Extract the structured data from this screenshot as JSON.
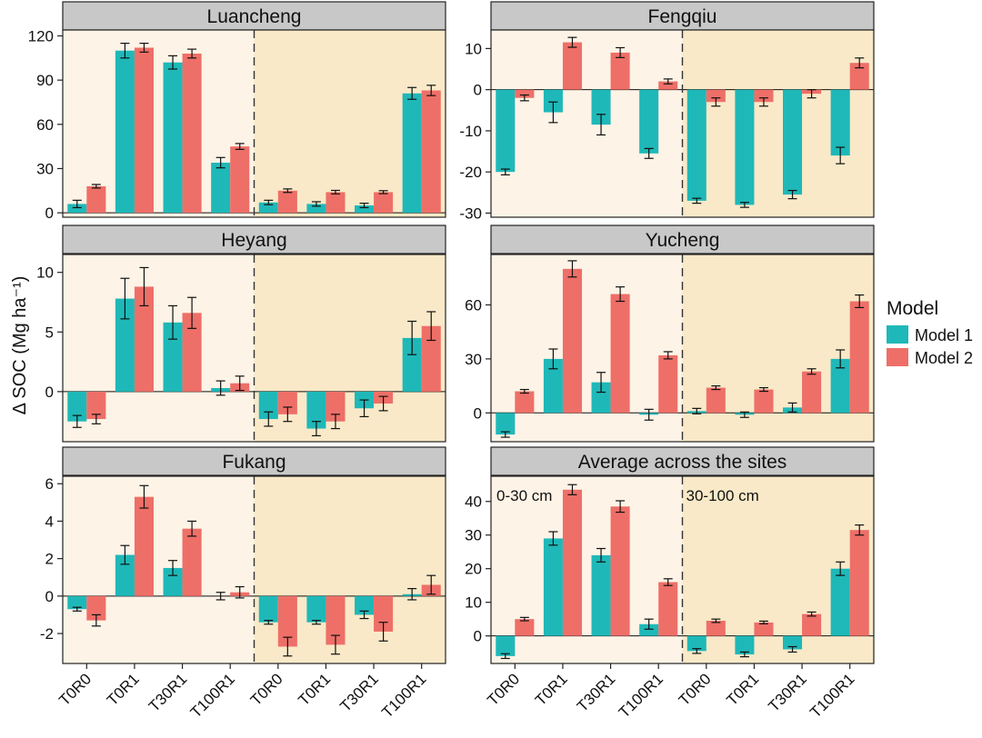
{
  "y_axis_label": "Δ SOC (Mg ha⁻¹)",
  "legend": {
    "title": "Model",
    "items": [
      {
        "label": "Model 1",
        "color": "#1fb8b8"
      },
      {
        "label": "Model 2",
        "color": "#ee6f68"
      }
    ]
  },
  "depth_labels": {
    "top": "0-30 cm",
    "sub": "30-100 cm"
  },
  "colors": {
    "model1": "#1fb8b8",
    "model2": "#ee6f68",
    "bg_topsoil": "#fdf3e6",
    "bg_subsoil": "#f9e9c8",
    "strip": "#c8c8c8"
  },
  "chart_data": [
    {
      "type": "bar",
      "title": "Luancheng",
      "categories": [
        "T0R0",
        "T0R1",
        "T30R1",
        "T100R1",
        "T0R0",
        "T0R1",
        "T30R1",
        "T100R1"
      ],
      "ylim": [
        -3,
        124
      ],
      "yticks": [
        0,
        30,
        60,
        90,
        120
      ],
      "series": [
        {
          "name": "Model 1",
          "values": [
            6,
            110,
            102,
            34,
            7,
            6,
            5,
            81
          ],
          "errors": [
            2.5,
            5,
            4.5,
            3.5,
            1.5,
            1.5,
            1.5,
            4
          ]
        },
        {
          "name": "Model 2",
          "values": [
            18,
            112,
            108,
            45,
            15,
            14,
            14,
            83
          ],
          "errors": [
            1.2,
            3,
            3,
            2,
            1.2,
            1.2,
            1,
            3.5
          ]
        }
      ]
    },
    {
      "type": "bar",
      "title": "Fengqiu",
      "categories": [
        "T0R0",
        "T0R1",
        "T30R1",
        "T100R1",
        "T0R0",
        "T0R1",
        "T30R1",
        "T100R1"
      ],
      "ylim": [
        -31,
        14.5
      ],
      "yticks": [
        -30,
        -20,
        -10,
        0,
        10
      ],
      "series": [
        {
          "name": "Model 1",
          "values": [
            -20,
            -5.5,
            -8.5,
            -15.5,
            -27,
            -28,
            -25.5,
            -16
          ],
          "errors": [
            0.7,
            2.5,
            2.5,
            1.2,
            0.6,
            0.6,
            1,
            2
          ]
        },
        {
          "name": "Model 2",
          "values": [
            -2,
            11.5,
            9,
            2,
            -3,
            -3,
            -1,
            6.5
          ],
          "errors": [
            0.7,
            1.2,
            1.2,
            0.6,
            1,
            1,
            1,
            1.2
          ]
        }
      ]
    },
    {
      "type": "bar",
      "title": "Heyang",
      "categories": [
        "T0R0",
        "T0R1",
        "T30R1",
        "T100R1",
        "T0R0",
        "T0R1",
        "T30R1",
        "T100R1"
      ],
      "ylim": [
        -4.2,
        11.5
      ],
      "yticks": [
        0,
        5,
        10
      ],
      "series": [
        {
          "name": "Model 1",
          "values": [
            -2.5,
            7.8,
            5.8,
            0.3,
            -2.3,
            -3.1,
            -1.4,
            4.5
          ],
          "errors": [
            0.5,
            1.7,
            1.4,
            0.6,
            0.6,
            0.6,
            0.7,
            1.4
          ]
        },
        {
          "name": "Model 2",
          "values": [
            -2.3,
            8.8,
            6.6,
            0.7,
            -1.9,
            -2.5,
            -1.0,
            5.5
          ],
          "errors": [
            0.4,
            1.6,
            1.3,
            0.6,
            0.6,
            0.6,
            0.6,
            1.2
          ]
        }
      ]
    },
    {
      "type": "bar",
      "title": "Yucheng",
      "categories": [
        "T0R0",
        "T0R1",
        "T30R1",
        "T100R1",
        "T0R0",
        "T0R1",
        "T30R1",
        "T100R1"
      ],
      "ylim": [
        -16,
        88
      ],
      "yticks": [
        0,
        30,
        60
      ],
      "series": [
        {
          "name": "Model 1",
          "values": [
            -12,
            30,
            17,
            -1,
            1,
            -1,
            3,
            30
          ],
          "errors": [
            1.5,
            5.5,
            5.5,
            3,
            1.5,
            1.5,
            2.5,
            5
          ]
        },
        {
          "name": "Model 2",
          "values": [
            12,
            80,
            66,
            32,
            14,
            13,
            23,
            62
          ],
          "errors": [
            1,
            4.5,
            4,
            2,
            1,
            1,
            1.5,
            3.5
          ]
        }
      ]
    },
    {
      "type": "bar",
      "title": "Fukang",
      "categories": [
        "T0R0",
        "T0R1",
        "T30R1",
        "T100R1",
        "T0R0",
        "T0R1",
        "T30R1",
        "T100R1"
      ],
      "ylim": [
        -3.6,
        6.4
      ],
      "yticks": [
        -2,
        0,
        2,
        4,
        6
      ],
      "series": [
        {
          "name": "Model 1",
          "values": [
            -0.7,
            2.2,
            1.5,
            0,
            -1.4,
            -1.4,
            -1.0,
            0.1
          ],
          "errors": [
            0.1,
            0.5,
            0.4,
            0.2,
            0.1,
            0.1,
            0.2,
            0.3
          ]
        },
        {
          "name": "Model 2",
          "values": [
            -1.3,
            5.3,
            3.6,
            0.2,
            -2.7,
            -2.6,
            -1.9,
            0.6
          ],
          "errors": [
            0.3,
            0.6,
            0.4,
            0.3,
            0.5,
            0.5,
            0.5,
            0.5
          ]
        }
      ]
    },
    {
      "type": "bar",
      "title": "Average across the sites",
      "categories": [
        "T0R0",
        "T0R1",
        "T30R1",
        "T100R1",
        "T0R0",
        "T0R1",
        "T30R1",
        "T100R1"
      ],
      "ylim": [
        -8.2,
        47.5
      ],
      "yticks": [
        0,
        10,
        20,
        30,
        40
      ],
      "series": [
        {
          "name": "Model 1",
          "values": [
            -6,
            29,
            24,
            3.5,
            -4.5,
            -5.5,
            -4,
            20
          ],
          "errors": [
            0.7,
            2,
            2,
            1.5,
            0.7,
            0.7,
            0.8,
            2
          ]
        },
        {
          "name": "Model 2",
          "values": [
            5,
            43.5,
            38.5,
            16,
            4.5,
            4,
            6.5,
            31.5
          ],
          "errors": [
            0.5,
            1.5,
            1.7,
            1,
            0.5,
            0.4,
            0.6,
            1.5
          ]
        }
      ]
    }
  ]
}
